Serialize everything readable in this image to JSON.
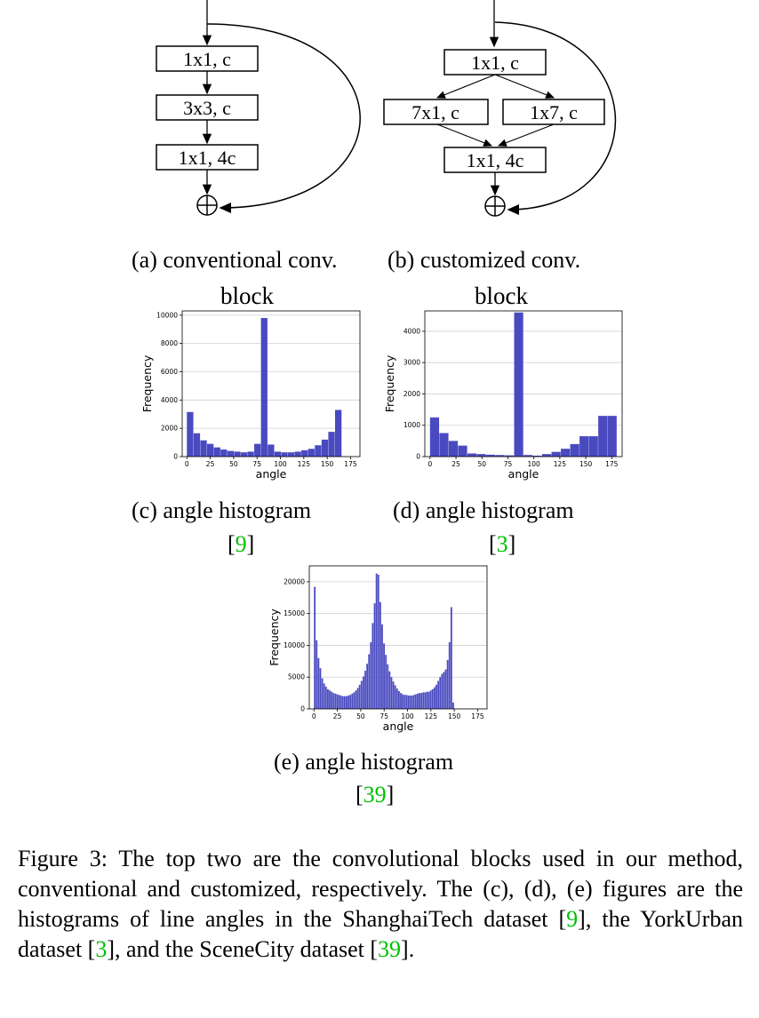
{
  "diagram_a": {
    "boxes": [
      "1x1, c",
      "3x3, c",
      "1x1, 4c"
    ],
    "caption": "(a) conventional conv."
  },
  "diagram_b": {
    "boxes": [
      "1x1, c",
      "7x1, c",
      "1x7, c",
      "1x1, 4c"
    ],
    "caption": "(b) customized conv."
  },
  "accent_color": "#4a4ac0",
  "cite_color": "#00c000",
  "chart_data": [
    {
      "type": "bar",
      "title": "block",
      "xlabel": "angle",
      "ylabel": "Frequency",
      "xlim": [
        -5,
        185
      ],
      "ylim": [
        0,
        10300
      ],
      "xticks": [
        0,
        25,
        50,
        75,
        100,
        125,
        150,
        175
      ],
      "yticks": [
        0,
        2000,
        4000,
        6000,
        8000,
        10000
      ],
      "grid": true,
      "bin_start": 0,
      "bin_width": 7.2,
      "values": [
        3150,
        1650,
        1150,
        900,
        650,
        500,
        400,
        350,
        300,
        350,
        900,
        9800,
        850,
        350,
        300,
        300,
        350,
        450,
        550,
        800,
        1200,
        1750,
        3300
      ],
      "caption": "(c) angle histogram",
      "cite": "[9]",
      "cite_num": "9"
    },
    {
      "type": "bar",
      "title": "block",
      "xlabel": "angle",
      "ylabel": "Frequency",
      "xlim": [
        -5,
        185
      ],
      "ylim": [
        0,
        4650
      ],
      "xticks": [
        0,
        25,
        50,
        75,
        100,
        125,
        150,
        175
      ],
      "yticks": [
        0,
        1000,
        2000,
        3000,
        4000
      ],
      "grid": true,
      "bin_start": 0,
      "bin_width": 9,
      "values": [
        1250,
        750,
        500,
        350,
        100,
        80,
        60,
        50,
        40,
        4600,
        50,
        30,
        80,
        150,
        250,
        400,
        650,
        650,
        1300,
        1300
      ],
      "caption": "(d) angle histogram",
      "cite": "[3]",
      "cite_num": "3"
    },
    {
      "type": "bar",
      "title": "",
      "xlabel": "angle",
      "ylabel": "Frequency",
      "xlim": [
        -5,
        185
      ],
      "ylim": [
        0,
        22500
      ],
      "xticks": [
        0,
        25,
        50,
        75,
        100,
        125,
        150,
        175
      ],
      "yticks": [
        0,
        5000,
        10000,
        15000,
        20000
      ],
      "grid": true,
      "bin_start": 0,
      "bin_width": 2,
      "values": [
        19200,
        10800,
        8000,
        6400,
        4800,
        4000,
        3500,
        3100,
        2900,
        2700,
        2500,
        2400,
        2300,
        2200,
        2100,
        2000,
        2000,
        2000,
        2100,
        2200,
        2400,
        2600,
        2900,
        3300,
        3800,
        4400,
        5100,
        6000,
        7100,
        8600,
        10500,
        13500,
        16600,
        21300,
        21100,
        16800,
        13300,
        10300,
        8500,
        7000,
        5900,
        5000,
        4300,
        3700,
        3200,
        2800,
        2500,
        2300,
        2200,
        2200,
        2100,
        2100,
        2100,
        2200,
        2300,
        2400,
        2500,
        2500,
        2600,
        2600,
        2700,
        2700,
        2900,
        3100,
        3400,
        3800,
        4400,
        5000,
        5500,
        5800,
        6200,
        7700,
        10500,
        16000,
        1000
      ],
      "caption": "(e) angle histogram",
      "cite": "[39]",
      "cite_num": "39"
    }
  ],
  "figure_caption": {
    "parts": [
      "Figure 3: The top two are the convolutional blocks used in our method, conventional and customized, respectively. The (c), (d), (e) figures are the histograms of line angles in the ShanghaiTech dataset [",
      "9",
      "], the YorkUrban dataset [",
      "3",
      "], and the SceneCity dataset [",
      "39",
      "]."
    ]
  }
}
